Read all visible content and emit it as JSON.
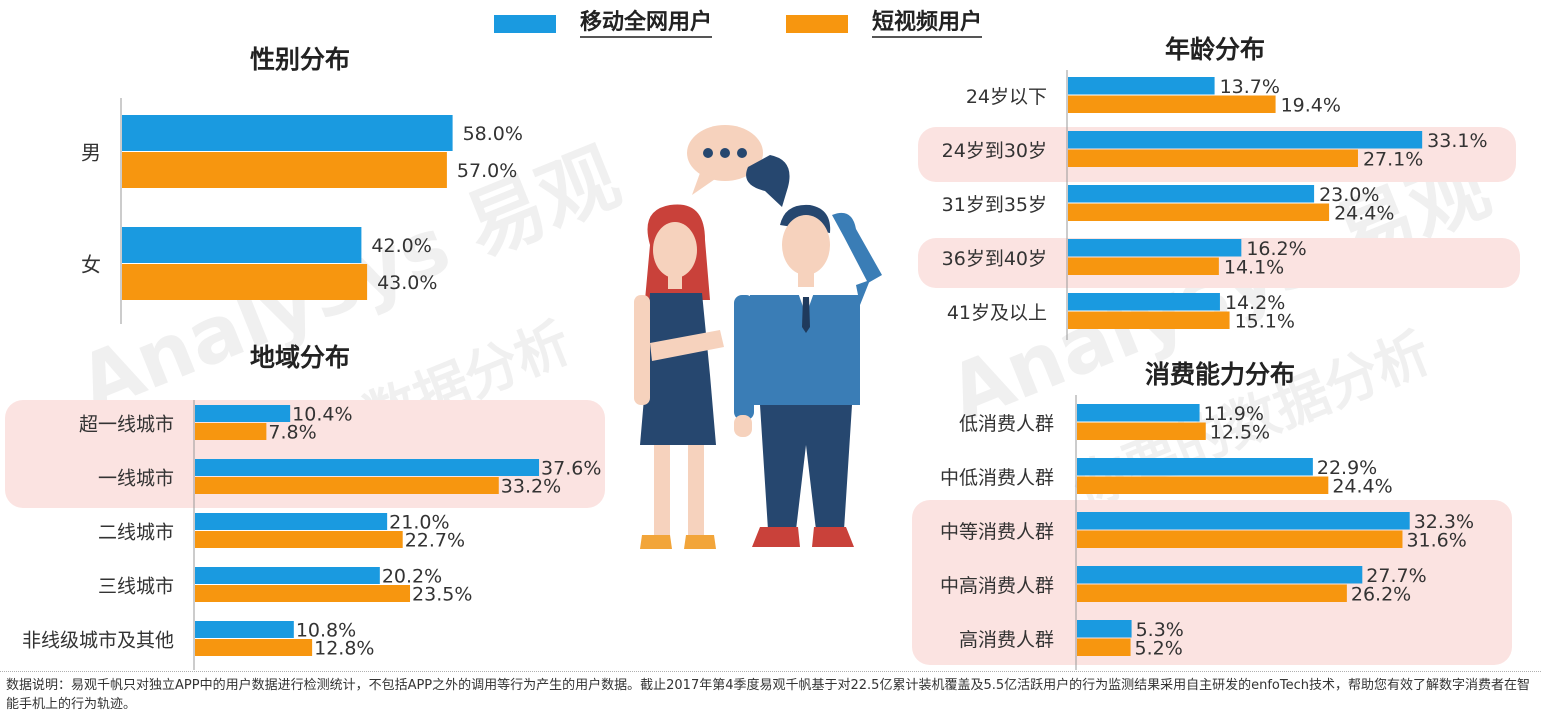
{
  "legend": {
    "series1": "移动全网用户",
    "series2": "短视频用户"
  },
  "colors": {
    "series1": "#1a9ae0",
    "series2": "#f7960f",
    "highlight": "#fbe3e1"
  },
  "watermark": {
    "logo": "Analysys 易观",
    "slogan": "你要的数据分析"
  },
  "chart_data": [
    {
      "type": "bar",
      "title": "性别分布",
      "categories": [
        "男",
        "女"
      ],
      "series": [
        {
          "name": "移动全网用户",
          "values": [
            58.0,
            42.0
          ]
        },
        {
          "name": "短视频用户",
          "values": [
            57.0,
            43.0
          ]
        }
      ],
      "unit": "%",
      "highlighted": []
    },
    {
      "type": "bar",
      "title": "地域分布",
      "categories": [
        "超一线城市",
        "一线城市",
        "二线城市",
        "三线城市",
        "非线级城市及其他"
      ],
      "series": [
        {
          "name": "移动全网用户",
          "values": [
            10.4,
            37.6,
            21.0,
            20.2,
            10.8
          ]
        },
        {
          "name": "短视频用户",
          "values": [
            7.8,
            33.2,
            22.7,
            23.5,
            12.8
          ]
        }
      ],
      "unit": "%",
      "highlighted": [
        "超一线城市",
        "一线城市"
      ]
    },
    {
      "type": "bar",
      "title": "年龄分布",
      "categories": [
        "24岁以下",
        "24岁到30岁",
        "31岁到35岁",
        "36岁到40岁",
        "41岁及以上"
      ],
      "series": [
        {
          "name": "移动全网用户",
          "values": [
            13.7,
            33.1,
            23.0,
            16.2,
            14.2
          ]
        },
        {
          "name": "短视频用户",
          "values": [
            19.4,
            27.1,
            24.4,
            14.1,
            15.1
          ]
        }
      ],
      "unit": "%",
      "highlighted": [
        "24岁到30岁",
        "36岁到40岁"
      ]
    },
    {
      "type": "bar",
      "title": "消费能力分布",
      "categories": [
        "低消费人群",
        "中低消费人群",
        "中等消费人群",
        "中高消费人群",
        "高消费人群"
      ],
      "series": [
        {
          "name": "移动全网用户",
          "values": [
            11.9,
            22.9,
            32.3,
            27.7,
            5.3
          ]
        },
        {
          "name": "短视频用户",
          "values": [
            12.5,
            24.4,
            31.6,
            26.2,
            5.2
          ]
        }
      ],
      "unit": "%",
      "highlighted": [
        "中等消费人群",
        "中高消费人群",
        "高消费人群"
      ]
    }
  ],
  "footnote": "数据说明：易观千帆只对独立APP中的用户数据进行检测统计，不包括APP之外的调用等行为产生的用户数据。截止2017年第4季度易观千帆基于对22.5亿累计装机覆盖及5.5亿活跃用户的行为监测结果采用自主研发的enfoTech技术，帮助您有效了解数字消费者在智能手机上的行为轨迹。"
}
